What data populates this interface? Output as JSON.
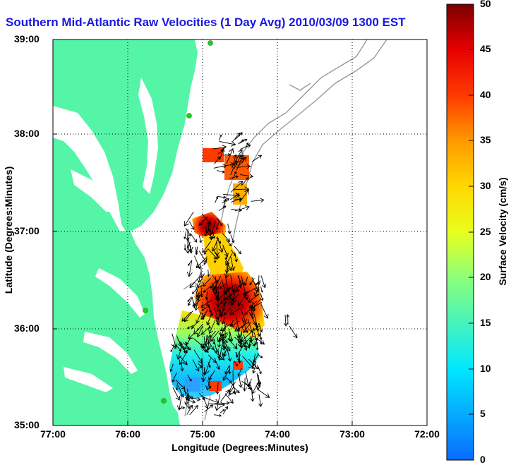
{
  "title": "Southern Mid-Atlantic Raw Velocities (1 Day Avg) 2010/03/09 1300 EST",
  "axes": {
    "xlabel": "Longitude (Degrees:Minutes)",
    "ylabel": "Latitude (Degrees:Minutes)",
    "xticks": [
      "77:00",
      "76:00",
      "75:00",
      "74:00",
      "73:00",
      "72:00"
    ],
    "yticks": [
      "39:00",
      "38:00",
      "37:00",
      "36:00",
      "35:00"
    ]
  },
  "colorbar": {
    "label": "Surface Velocity (cm/s)",
    "ticks": [
      "50",
      "45",
      "40",
      "35",
      "30",
      "25",
      "20",
      "15",
      "10",
      "5",
      "0"
    ],
    "min": 0,
    "max": 50
  },
  "colors": {
    "land": "#55f5a8",
    "title": "#1818e0",
    "bathymetry": "#999999",
    "station": "#22cc22"
  }
}
